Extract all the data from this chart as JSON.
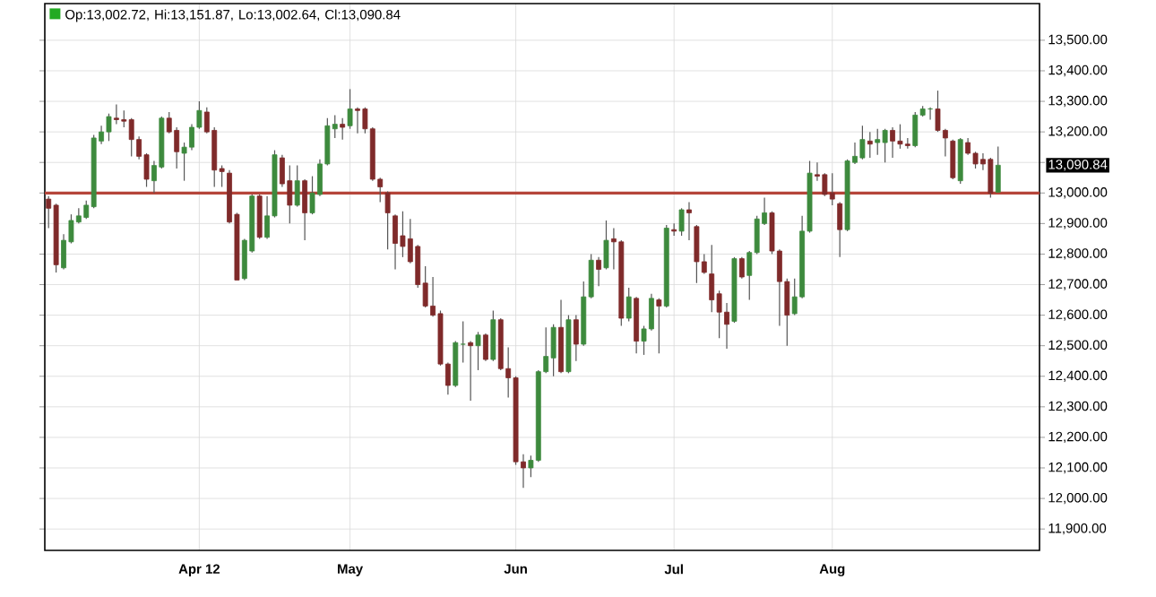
{
  "chart_data": {
    "type": "candlestick",
    "annotations": [
      "Op:13,002.72, Hi:13,151.87, Lo:13,002.64, Cl:13,090.84",
      "13,090.84"
    ],
    "categories": [
      null,
      null,
      null,
      null,
      null,
      null,
      null,
      null,
      null,
      null,
      null,
      null,
      null,
      null,
      null,
      null,
      null,
      null,
      null,
      null,
      "Apr 12",
      null,
      null,
      null,
      null,
      null,
      null,
      null,
      null,
      null,
      null,
      null,
      null,
      null,
      null,
      null,
      null,
      null,
      null,
      null,
      "May",
      null,
      null,
      null,
      null,
      null,
      null,
      null,
      null,
      null,
      null,
      null,
      null,
      null,
      null,
      null,
      null,
      null,
      null,
      null,
      null,
      null,
      "Jun",
      null,
      null,
      null,
      null,
      null,
      null,
      null,
      null,
      null,
      null,
      null,
      null,
      null,
      null,
      null,
      null,
      null,
      null,
      null,
      null,
      "Jul",
      null,
      null,
      null,
      null,
      null,
      null,
      null,
      null,
      null,
      null,
      null,
      null,
      null,
      null,
      null,
      null,
      null,
      null,
      null,
      null,
      "Aug",
      null,
      null,
      null,
      null,
      null,
      null,
      null,
      null,
      null,
      null,
      null,
      null,
      null,
      null,
      null,
      null,
      null,
      null,
      null,
      null,
      null,
      null
    ],
    "ohlc": [
      [
        12980,
        12990,
        12885,
        12950
      ],
      [
        12960,
        12965,
        12740,
        12765
      ],
      [
        12755,
        12865,
        12750,
        12845
      ],
      [
        12840,
        12930,
        12835,
        12910
      ],
      [
        12905,
        12950,
        12900,
        12925
      ],
      [
        12920,
        12975,
        12915,
        12960
      ],
      [
        12955,
        13190,
        12950,
        13180
      ],
      [
        13170,
        13220,
        13160,
        13200
      ],
      [
        13200,
        13260,
        13170,
        13250
      ],
      [
        13245,
        13290,
        13225,
        13240
      ],
      [
        13240,
        13270,
        13215,
        13235
      ],
      [
        13240,
        13245,
        13120,
        13175
      ],
      [
        13175,
        13185,
        13110,
        13120
      ],
      [
        13125,
        13130,
        13020,
        13045
      ],
      [
        13040,
        13105,
        13000,
        13090
      ],
      [
        13085,
        13250,
        13080,
        13245
      ],
      [
        13245,
        13265,
        13195,
        13200
      ],
      [
        13205,
        13215,
        13080,
        13135
      ],
      [
        13130,
        13165,
        13040,
        13150
      ],
      [
        13150,
        13225,
        13140,
        13215
      ],
      [
        13215,
        13300,
        13210,
        13270
      ],
      [
        13265,
        13280,
        13195,
        13200
      ],
      [
        13205,
        13215,
        13020,
        13075
      ],
      [
        13080,
        13090,
        13020,
        13070
      ],
      [
        13065,
        13075,
        12900,
        12905
      ],
      [
        12930,
        12935,
        12715,
        12715
      ],
      [
        12720,
        12850,
        12715,
        12845
      ],
      [
        12810,
        12995,
        12805,
        12990
      ],
      [
        12990,
        12995,
        12850,
        12855
      ],
      [
        12855,
        12990,
        12850,
        12925
      ],
      [
        12925,
        13140,
        12920,
        13125
      ],
      [
        13115,
        13125,
        13020,
        13030
      ],
      [
        13040,
        13090,
        12900,
        12960
      ],
      [
        12960,
        13090,
        12955,
        13040
      ],
      [
        13040,
        13045,
        12845,
        12935
      ],
      [
        12935,
        13055,
        12930,
        13000
      ],
      [
        12995,
        13110,
        12990,
        13095
      ],
      [
        13095,
        13245,
        13090,
        13220
      ],
      [
        13210,
        13255,
        13180,
        13225
      ],
      [
        13225,
        13245,
        13175,
        13215
      ],
      [
        13220,
        13340,
        13210,
        13275
      ],
      [
        13275,
        13280,
        13195,
        13270
      ],
      [
        13275,
        13280,
        13195,
        13210
      ],
      [
        13210,
        13215,
        13040,
        13045
      ],
      [
        13045,
        13050,
        12970,
        13020
      ],
      [
        13000,
        13005,
        12815,
        12935
      ],
      [
        12925,
        12930,
        12750,
        12835
      ],
      [
        12860,
        12940,
        12790,
        12825
      ],
      [
        12850,
        12915,
        12770,
        12775
      ],
      [
        12825,
        12830,
        12690,
        12700
      ],
      [
        12705,
        12760,
        12625,
        12630
      ],
      [
        12630,
        12725,
        12595,
        12600
      ],
      [
        12605,
        12615,
        12435,
        12440
      ],
      [
        12440,
        12445,
        12340,
        12370
      ],
      [
        12370,
        12515,
        12365,
        12510
      ],
      [
        12505,
        12580,
        12445,
        12505
      ],
      [
        12510,
        12515,
        12320,
        12500
      ],
      [
        12500,
        12545,
        12420,
        12535
      ],
      [
        12535,
        12540,
        12450,
        12455
      ],
      [
        12455,
        12615,
        12450,
        12585
      ],
      [
        12585,
        12590,
        12420,
        12425
      ],
      [
        12425,
        12495,
        12330,
        12395
      ],
      [
        12395,
        12400,
        12110,
        12120
      ],
      [
        12120,
        12145,
        12035,
        12100
      ],
      [
        12100,
        12140,
        12070,
        12125
      ],
      [
        12125,
        12420,
        12120,
        12415
      ],
      [
        12415,
        12560,
        12410,
        12465
      ],
      [
        12460,
        12570,
        12400,
        12560
      ],
      [
        12560,
        12650,
        12410,
        12415
      ],
      [
        12415,
        12600,
        12410,
        12585
      ],
      [
        12585,
        12600,
        12450,
        12505
      ],
      [
        12505,
        12710,
        12500,
        12660
      ],
      [
        12660,
        12800,
        12655,
        12780
      ],
      [
        12780,
        12790,
        12695,
        12750
      ],
      [
        12755,
        12910,
        12750,
        12845
      ],
      [
        12850,
        12885,
        12750,
        12840
      ],
      [
        12840,
        12845,
        12565,
        12590
      ],
      [
        12590,
        12690,
        12580,
        12660
      ],
      [
        12655,
        12660,
        12475,
        12515
      ],
      [
        12515,
        12565,
        12470,
        12555
      ],
      [
        12555,
        12670,
        12550,
        12655
      ],
      [
        12650,
        12655,
        12475,
        12630
      ],
      [
        12630,
        12895,
        12625,
        12885
      ],
      [
        12880,
        12900,
        12860,
        12875
      ],
      [
        12875,
        12950,
        12860,
        12945
      ],
      [
        12945,
        12970,
        12845,
        12935
      ],
      [
        12890,
        12895,
        12705,
        12775
      ],
      [
        12775,
        12800,
        12735,
        12740
      ],
      [
        12735,
        12830,
        12610,
        12650
      ],
      [
        12670,
        12680,
        12525,
        12610
      ],
      [
        12610,
        12640,
        12490,
        12570
      ],
      [
        12580,
        12790,
        12575,
        12785
      ],
      [
        12785,
        12790,
        12720,
        12725
      ],
      [
        12730,
        12810,
        12650,
        12805
      ],
      [
        12805,
        12925,
        12800,
        12915
      ],
      [
        12900,
        12985,
        12895,
        12935
      ],
      [
        12935,
        12940,
        12800,
        12810
      ],
      [
        12810,
        12815,
        12565,
        12710
      ],
      [
        12710,
        12720,
        12500,
        12600
      ],
      [
        12605,
        12720,
        12600,
        12660
      ],
      [
        12660,
        12925,
        12655,
        12875
      ],
      [
        12875,
        13105,
        12870,
        13065
      ],
      [
        13060,
        13100,
        13040,
        13055
      ],
      [
        13060,
        13065,
        12990,
        12995
      ],
      [
        13000,
        13065,
        12960,
        12980
      ],
      [
        12965,
        12970,
        12790,
        12880
      ],
      [
        12880,
        13110,
        12875,
        13105
      ],
      [
        13100,
        13165,
        13095,
        13120
      ],
      [
        13115,
        13220,
        13110,
        13175
      ],
      [
        13170,
        13200,
        13115,
        13160
      ],
      [
        13165,
        13210,
        13125,
        13175
      ],
      [
        13165,
        13210,
        13100,
        13205
      ],
      [
        13205,
        13215,
        13115,
        13170
      ],
      [
        13170,
        13225,
        13145,
        13160
      ],
      [
        13160,
        13180,
        13145,
        13155
      ],
      [
        13155,
        13265,
        13150,
        13255
      ],
      [
        13255,
        13285,
        13250,
        13275
      ],
      [
        13275,
        13280,
        13240,
        13275
      ],
      [
        13275,
        13335,
        13200,
        13205
      ],
      [
        13205,
        13210,
        13120,
        13180
      ],
      [
        13170,
        13175,
        13045,
        13050
      ],
      [
        13040,
        13180,
        13030,
        13175
      ],
      [
        13165,
        13180,
        13125,
        13130
      ],
      [
        13130,
        13135,
        13080,
        13095
      ],
      [
        13110,
        13130,
        13075,
        13095
      ],
      [
        13110,
        13115,
        12985,
        13000
      ],
      [
        13002.72,
        13151.87,
        13002.64,
        13090.84
      ]
    ],
    "ylim": [
      11830,
      13620
    ],
    "yticks": [
      {
        "value": 11900,
        "label": "11,900.00"
      },
      {
        "value": 12000,
        "label": "12,000.00"
      },
      {
        "value": 12100,
        "label": "12,100.00"
      },
      {
        "value": 12200,
        "label": "12,200.00"
      },
      {
        "value": 12300,
        "label": "12,300.00"
      },
      {
        "value": 12400,
        "label": "12,400.00"
      },
      {
        "value": 12500,
        "label": "12,500.00"
      },
      {
        "value": 12600,
        "label": "12,600.00"
      },
      {
        "value": 12700,
        "label": "12,700.00"
      },
      {
        "value": 12800,
        "label": "12,800.00"
      },
      {
        "value": 12900,
        "label": "12,900.00"
      },
      {
        "value": 13000,
        "label": "13,000.00"
      },
      {
        "value": 13100,
        "label": null
      },
      {
        "value": 13200,
        "label": "13,200.00"
      },
      {
        "value": 13300,
        "label": "13,300.00"
      },
      {
        "value": 13400,
        "label": "13,400.00"
      },
      {
        "value": 13500,
        "label": "13,500.00"
      }
    ],
    "ref_lines": [
      {
        "axis": "y",
        "value": 13000,
        "color": "#b5453a"
      }
    ],
    "grid": true
  }
}
